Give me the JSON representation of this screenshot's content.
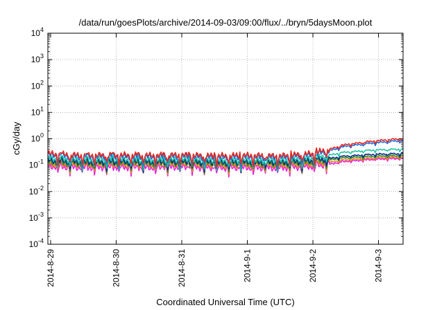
{
  "chart_data": {
    "type": "line",
    "title": "/data/run/goesPlots/archive/2014-09-03/09:00/flux/../bryn/5daysMoon.plot",
    "xlabel": "Coordinated Universal Time (UTC)",
    "ylabel": "cGy/day",
    "yscale": "log",
    "ylim": [
      0.0001,
      10000
    ],
    "xlim": [
      "2014-08-28 23:00",
      "2014-09-03 09:00"
    ],
    "grid": true,
    "x_ticks": [
      "2014-8-29",
      "2014-8-30",
      "2014-8-31",
      "2014-9-1",
      "2014-9-2",
      "2014-9-3"
    ],
    "y_ticks": [
      {
        "value": 0.0001,
        "base": "10",
        "exp": "-4"
      },
      {
        "value": 0.001,
        "base": "10",
        "exp": "-3"
      },
      {
        "value": 0.01,
        "base": "10",
        "exp": "-2"
      },
      {
        "value": 0.1,
        "base": "10",
        "exp": "-1"
      },
      {
        "value": 1,
        "base": "10",
        "exp": "0"
      },
      {
        "value": 10,
        "base": "10",
        "exp": "1"
      },
      {
        "value": 100,
        "base": "10",
        "exp": "2"
      },
      {
        "value": 1000,
        "base": "10",
        "exp": "3"
      },
      {
        "value": 10000,
        "base": "10",
        "exp": "4"
      }
    ],
    "x": [
      "2014-08-28 23:00",
      "2014-08-29 12:00",
      "2014-08-30 00:00",
      "2014-08-30 12:00",
      "2014-08-31 00:00",
      "2014-08-31 12:00",
      "2014-09-01 00:00",
      "2014-09-01 12:00",
      "2014-09-02 00:00",
      "2014-09-02 06:00",
      "2014-09-02 12:00",
      "2014-09-03 00:00",
      "2014-09-03 09:00"
    ],
    "series": [
      {
        "color": "#e6261f",
        "values": [
          0.27,
          0.23,
          0.24,
          0.23,
          0.24,
          0.22,
          0.23,
          0.22,
          0.27,
          0.4,
          0.6,
          0.85,
          1.0
        ]
      },
      {
        "color": "#1e6fe0",
        "values": [
          0.24,
          0.2,
          0.21,
          0.2,
          0.21,
          0.19,
          0.2,
          0.19,
          0.24,
          0.35,
          0.52,
          0.72,
          0.85
        ]
      },
      {
        "color": "#22c4a2",
        "values": [
          0.18,
          0.15,
          0.16,
          0.15,
          0.16,
          0.145,
          0.15,
          0.145,
          0.18,
          0.24,
          0.31,
          0.38,
          0.4
        ]
      },
      {
        "color": "#0b2a8c",
        "values": [
          0.15,
          0.13,
          0.135,
          0.13,
          0.135,
          0.125,
          0.13,
          0.125,
          0.15,
          0.18,
          0.22,
          0.26,
          0.27
        ]
      },
      {
        "color": "#2e8b22",
        "values": [
          0.13,
          0.115,
          0.12,
          0.115,
          0.12,
          0.11,
          0.115,
          0.11,
          0.13,
          0.16,
          0.19,
          0.22,
          0.23
        ]
      },
      {
        "color": "#e6891f",
        "values": [
          0.11,
          0.1,
          0.105,
          0.1,
          0.105,
          0.095,
          0.1,
          0.095,
          0.11,
          0.13,
          0.16,
          0.19,
          0.2
        ]
      },
      {
        "color": "#e91ee0",
        "values": [
          0.09,
          0.08,
          0.085,
          0.08,
          0.085,
          0.078,
          0.08,
          0.078,
          0.09,
          0.11,
          0.14,
          0.17,
          0.18
        ]
      }
    ]
  }
}
